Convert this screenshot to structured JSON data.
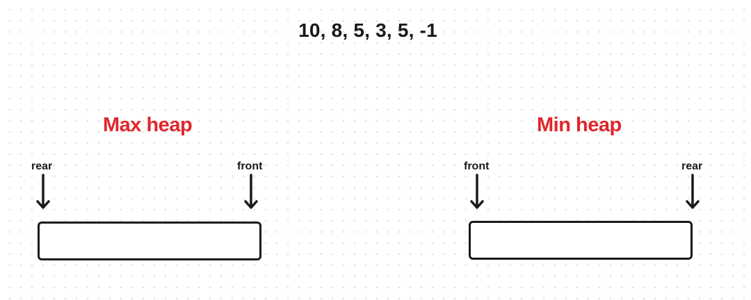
{
  "sequence": "10, 8, 5, 3, 5, -1",
  "colors": {
    "title": "#e0262b",
    "ink": "#1a1a1a"
  },
  "max_heap": {
    "title": "Max heap",
    "left_pointer": "rear",
    "right_pointer": "front"
  },
  "min_heap": {
    "title": "Min heap",
    "left_pointer": "front",
    "right_pointer": "rear"
  },
  "icons": {
    "pointer": "arrow-down-icon"
  }
}
